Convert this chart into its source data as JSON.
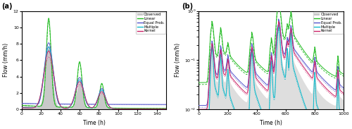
{
  "title_a": "(a)",
  "title_b": "(b)",
  "xlabel": "Time (h)",
  "ylabel": "Flow (mm/h)",
  "xlim_a": [
    0,
    150
  ],
  "ylim_a": [
    0,
    12
  ],
  "xlim_b": [
    0,
    1000
  ],
  "ylim_b_log": [
    -2,
    0
  ],
  "legend_labels": [
    "Observed",
    "Linear",
    "Equal Prob.",
    "Multiple",
    "Kernel"
  ],
  "colors": {
    "observed": "#c8c8c8",
    "linear": "#22bb22",
    "equal": "#5555cc",
    "multiple": "#11bbcc",
    "kernel": "#cc2266"
  },
  "background_color": "#ffffff"
}
